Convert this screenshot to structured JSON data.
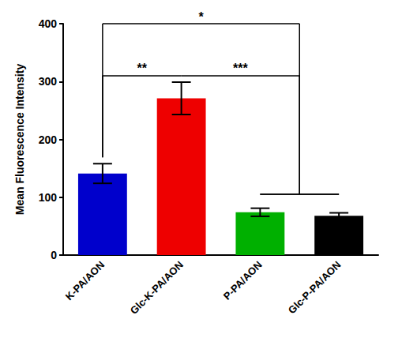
{
  "chart_data": {
    "type": "bar",
    "categories": [
      "K-PA/AON",
      "Glc-K-PA/AON",
      "P-PA/AON",
      "Glc-P-PA/AON"
    ],
    "values": [
      141,
      271,
      74,
      68
    ],
    "errors": [
      17,
      28,
      7,
      5
    ],
    "colors": [
      "#0000cc",
      "#ee0000",
      "#00b000",
      "#000000"
    ],
    "y_label": "Mean Fluorescence Intensity",
    "ylim": [
      0,
      400
    ],
    "yticks": [
      0,
      100,
      200,
      300,
      400
    ],
    "grid": false,
    "annotations": [
      {
        "text": "**",
        "from": "K-PA/AON",
        "to": "Glc-K-PA/AON",
        "y": 310
      },
      {
        "text": "***",
        "from": "Glc-K-PA/AON",
        "to": [
          "P-PA/AON",
          "Glc-P-PA/AON"
        ],
        "y": 310,
        "group_y": 105
      },
      {
        "text": "*",
        "from": "K-PA/AON",
        "to": [
          "P-PA/AON",
          "Glc-P-PA/AON"
        ],
        "y": 400,
        "group_y": 105
      }
    ]
  }
}
